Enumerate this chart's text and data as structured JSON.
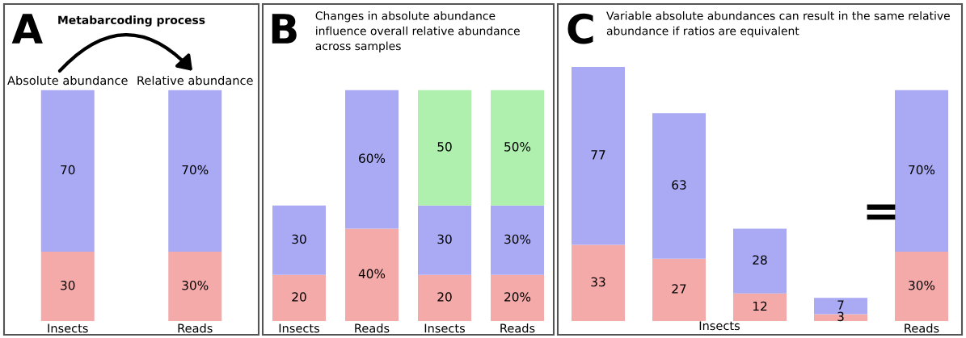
{
  "chart_data": [
    {
      "type": "bar",
      "stacked": true,
      "title": "Metabarcoding process",
      "categories": [
        "Insects",
        "Reads"
      ],
      "series": [
        {
          "color": "#f4aaa9",
          "values": [
            30,
            30
          ],
          "value_labels": [
            "30",
            "30%"
          ]
        },
        {
          "color": "#aaaaf4",
          "values": [
            70,
            70
          ],
          "value_labels": [
            "70",
            "70%"
          ]
        }
      ],
      "annotations": [
        "A",
        "Absolute abundance",
        "Relative abundance"
      ]
    },
    {
      "type": "bar",
      "stacked": true,
      "title": "Changes in absolute abundance\ninfluence overall relative abundance\nacross samples",
      "categories": [
        "Insects",
        "Reads",
        "Insects",
        "Reads"
      ],
      "series": [
        {
          "color": "#f4aaa9",
          "values": [
            20,
            40,
            20,
            20
          ],
          "value_labels": [
            "20",
            "40%",
            "20",
            "20%"
          ]
        },
        {
          "color": "#aaaaf4",
          "values": [
            30,
            60,
            30,
            30
          ],
          "value_labels": [
            "30",
            "60%",
            "30",
            "30%"
          ]
        },
        {
          "color": "#b0f0ae",
          "values": [
            null,
            null,
            50,
            50
          ],
          "value_labels": [
            null,
            null,
            "50",
            "50%"
          ]
        }
      ],
      "annotations": [
        "B"
      ]
    },
    {
      "type": "bar",
      "stacked": true,
      "title": "Variable absolute abundances can result in the same relative\nabundance if ratios are equivalent",
      "categories": [
        null,
        null,
        null,
        null,
        "Reads"
      ],
      "series": [
        {
          "color": "#f4aaa9",
          "values": [
            33,
            27,
            12,
            3,
            30
          ],
          "value_labels": [
            "33",
            "27",
            "12",
            "3",
            "30%"
          ]
        },
        {
          "color": "#aaaaf4",
          "values": [
            77,
            63,
            28,
            7,
            70
          ],
          "value_labels": [
            "77",
            "63",
            "28",
            "7",
            "70%"
          ]
        }
      ],
      "annotations": [
        "C",
        "Insects",
        "="
      ]
    }
  ]
}
